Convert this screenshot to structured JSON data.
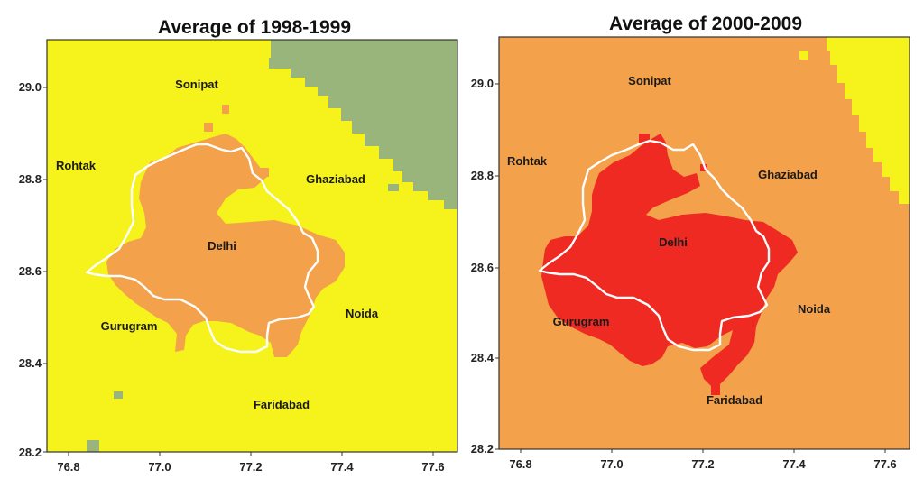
{
  "colors": {
    "yellow": "#f6f21c",
    "orange": "#f3a14b",
    "red": "#ee2a22",
    "green": "#9ab57b",
    "boundary": "#ffffff",
    "frame": "#333333"
  },
  "axes": {
    "x_ticks": [
      "76.8",
      "77.0",
      "77.2",
      "77.4",
      "77.6"
    ],
    "y_ticks": [
      "29.0",
      "28.8",
      "28.6",
      "28.4",
      "28.2"
    ]
  },
  "maps": [
    {
      "title": "Average of 1998-1999",
      "background": "yellow",
      "core": "orange",
      "cities": [
        "Sonipat",
        "Rohtak",
        "Ghaziabad",
        "Delhi",
        "Gurugram",
        "Noida",
        "Faridabad"
      ]
    },
    {
      "title": "Average of 2000-2009",
      "background": "orange",
      "core": "red",
      "cities": [
        "Sonipat",
        "Rohtak",
        "Ghaziabad",
        "Delhi",
        "Gurugram",
        "Noida",
        "Faridabad"
      ]
    }
  ]
}
